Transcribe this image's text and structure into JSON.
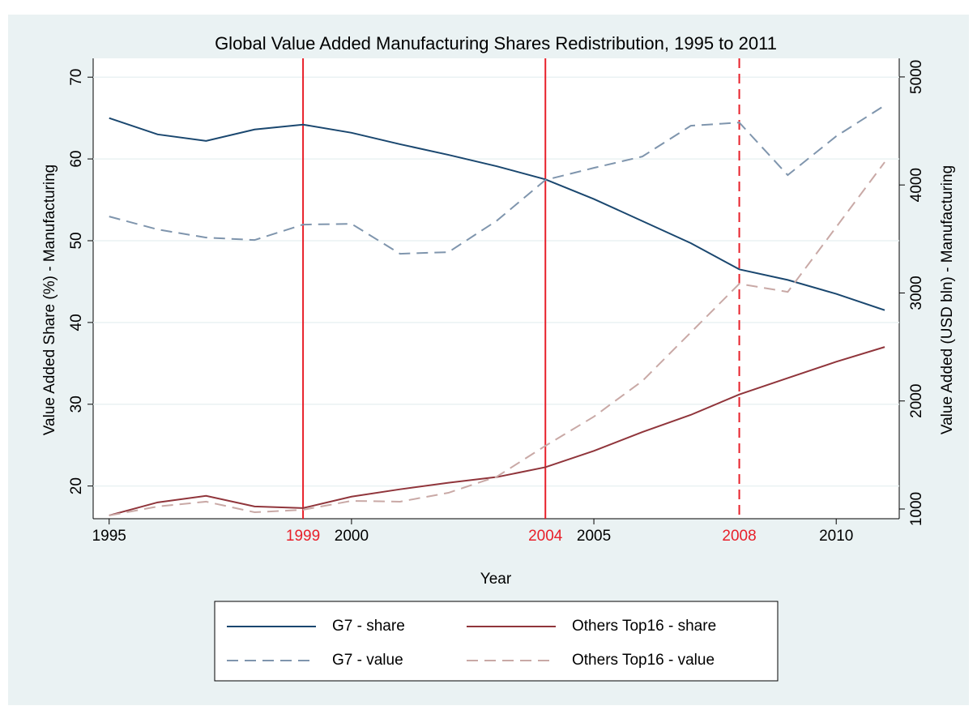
{
  "chart_data": {
    "type": "line",
    "title": "Global Value Added Manufacturing Shares Redistribution, 1995 to 2011",
    "x_label": "Year",
    "y_label": "Value Added Share (%) - Manufacturing",
    "y2_label": "Value Added (USD bln) - Manufacturing",
    "x": [
      1995,
      1996,
      1997,
      1998,
      1999,
      2000,
      2001,
      2002,
      2003,
      2004,
      2005,
      2006,
      2007,
      2008,
      2009,
      2010,
      2011
    ],
    "series": [
      {
        "name": "G7 - share",
        "color": "#1a476f",
        "dash": "solid",
        "values": [
          65,
          63,
          62.2,
          63.6,
          64.2,
          63.2,
          61.8,
          60.5,
          59.1,
          57.5,
          55.1,
          52.4,
          49.7,
          46.5,
          45.2,
          43.5,
          41.5
        ]
      },
      {
        "name": "Others Top16 - share",
        "color": "#90353b",
        "dash": "solid",
        "values": [
          16.4,
          18.0,
          18.8,
          17.5,
          17.3,
          18.7,
          19.6,
          20.4,
          21.1,
          22.3,
          24.3,
          26.6,
          28.7,
          31.2,
          33.2,
          35.2,
          37.0
        ]
      },
      {
        "name": "G7 - value",
        "color": "#7f95ad",
        "dash": "dashed",
        "axis": "y2",
        "values": [
          3708,
          3588,
          3513,
          3490,
          3633,
          3640,
          3363,
          3378,
          3670,
          4046,
          4158,
          4263,
          4548,
          4578,
          4091,
          4451,
          4736
        ]
      },
      {
        "name": "Others Top16 - value",
        "color": "#c9a9a6",
        "dash": "dashed",
        "axis": "y2",
        "values": [
          940,
          1023,
          1068,
          970,
          993,
          1075,
          1068,
          1150,
          1300,
          1585,
          1855,
          2185,
          2635,
          3085,
          3010,
          3610,
          4211
        ]
      }
    ],
    "xlim": [
      1994.67,
      2011.3
    ],
    "xticks": [
      1995,
      2000,
      2005,
      2010
    ],
    "ylim": [
      16,
      72.3
    ],
    "yticks": [
      20,
      30,
      40,
      50,
      60,
      70
    ],
    "y2lim": [
      910,
      5172
    ],
    "y2ticks": [
      1000,
      2000,
      3000,
      4000,
      5000
    ],
    "vlines": [
      {
        "value": 1999,
        "dash": "solid",
        "color": "#e8202a"
      },
      {
        "value": 2004,
        "dash": "solid",
        "color": "#e8202a"
      },
      {
        "value": 2008,
        "dash": "dashed",
        "color": "#e8202a"
      }
    ],
    "grid": true,
    "legend": "bottom"
  }
}
